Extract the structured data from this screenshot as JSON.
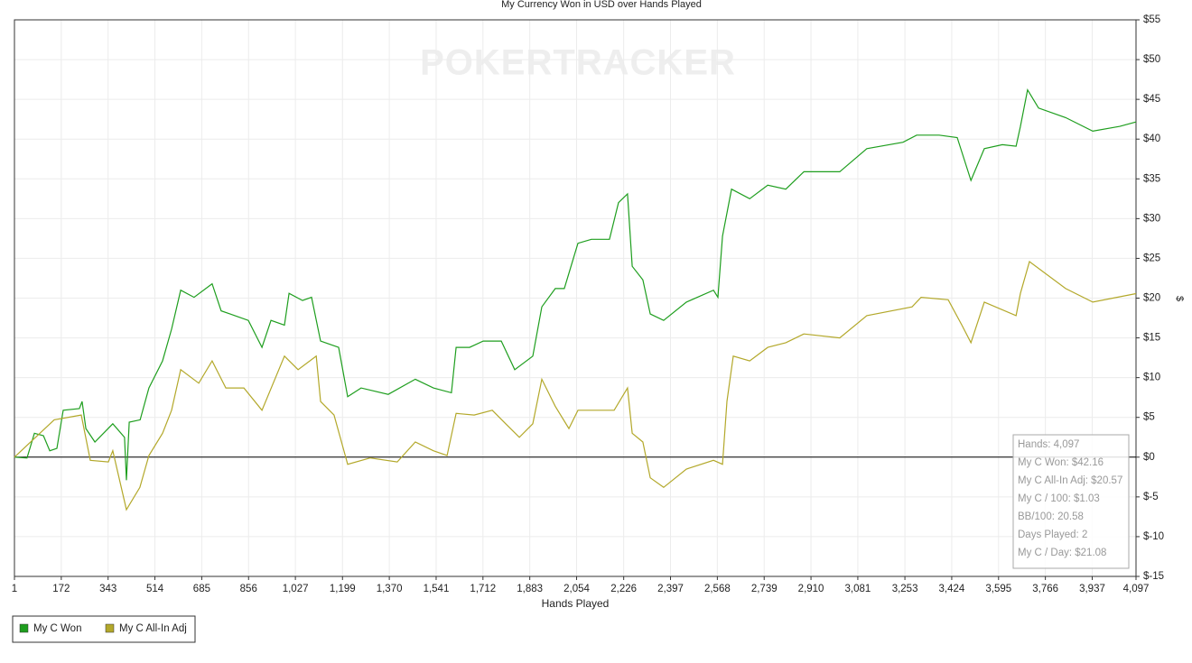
{
  "chart_data": {
    "type": "line",
    "title": "My Currency Won in USD over Hands Played",
    "watermark": "POKERTRACKER",
    "xlabel": "Hands Played",
    "ylabel": "$",
    "xlim": [
      1,
      4097
    ],
    "ylim": [
      -15,
      55
    ],
    "grid": true,
    "legend": "bottom-left",
    "xticks": [
      1,
      {
        "value": 172,
        "label": "172"
      },
      {
        "value": 343,
        "label": "343"
      },
      {
        "value": 514,
        "label": "514"
      },
      {
        "value": 685,
        "label": "685"
      },
      {
        "value": 856,
        "label": "856"
      },
      {
        "value": 1027,
        "label": "1,027"
      },
      {
        "value": 1199,
        "label": "1,199"
      },
      {
        "value": 1370,
        "label": "1,370"
      },
      {
        "value": 1541,
        "label": "1,541"
      },
      {
        "value": 1712,
        "label": "1,712"
      },
      {
        "value": 1883,
        "label": "1,883"
      },
      {
        "value": 2054,
        "label": "2,054"
      },
      {
        "value": 2226,
        "label": "2,226"
      },
      {
        "value": 2397,
        "label": "2,397"
      },
      {
        "value": 2568,
        "label": "2,568"
      },
      {
        "value": 2739,
        "label": "2,739"
      },
      {
        "value": 2910,
        "label": "2,910"
      },
      {
        "value": 3081,
        "label": "3,081"
      },
      {
        "value": 3253,
        "label": "3,253"
      },
      {
        "value": 3424,
        "label": "3,424"
      },
      {
        "value": 3595,
        "label": "3,595"
      },
      {
        "value": 3766,
        "label": "3,766"
      },
      {
        "value": 3937,
        "label": "3,937"
      },
      {
        "value": 4097,
        "label": "4,097"
      }
    ],
    "yticks": [
      {
        "value": -15,
        "label": "$-15"
      },
      {
        "value": -10,
        "label": "$-10"
      },
      {
        "value": -5,
        "label": "$-5"
      },
      {
        "value": 0,
        "label": "$0"
      },
      {
        "value": 5,
        "label": "$5"
      },
      {
        "value": 10,
        "label": "$10"
      },
      {
        "value": 15,
        "label": "$15"
      },
      {
        "value": 20,
        "label": "$20"
      },
      {
        "value": 25,
        "label": "$25"
      },
      {
        "value": 30,
        "label": "$30"
      },
      {
        "value": 35,
        "label": "$35"
      },
      {
        "value": 40,
        "label": "$40"
      },
      {
        "value": 45,
        "label": "$45"
      },
      {
        "value": 50,
        "label": "$50"
      },
      {
        "value": 55,
        "label": "$55"
      }
    ],
    "series": [
      {
        "name": "My C Won",
        "color": "#1e9e1e",
        "x": [
          1,
          47,
          74,
          107,
          130,
          156,
          179,
          238,
          248,
          262,
          295,
          360,
          403,
          410,
          420,
          460,
          492,
          542,
          575,
          608,
          657,
          723,
          756,
          806,
          855,
          905,
          938,
          987,
          1004,
          1053,
          1086,
          1119,
          1185,
          1218,
          1267,
          1366,
          1465,
          1531,
          1597,
          1614,
          1663,
          1713,
          1779,
          1828,
          1894,
          1927,
          1976,
          2009,
          2059,
          2108,
          2174,
          2207,
          2240,
          2257,
          2296,
          2323,
          2372,
          2455,
          2554,
          2570,
          2587,
          2620,
          2686,
          2752,
          2818,
          2884,
          3015,
          3114,
          3246,
          3296,
          3378,
          3444,
          3494,
          3543,
          3609,
          3659,
          3675,
          3701,
          3741,
          3840,
          3939,
          4038,
          4097
        ],
        "values": [
          0,
          -0.1,
          3.0,
          2.7,
          0.8,
          1.1,
          5.9,
          6.1,
          7.0,
          3.6,
          1.9,
          4.2,
          2.5,
          -2.9,
          4.4,
          4.7,
          8.7,
          12.1,
          16.1,
          21.0,
          20.1,
          21.8,
          18.4,
          17.8,
          17.2,
          13.8,
          17.2,
          16.6,
          20.6,
          19.7,
          20.1,
          14.6,
          13.8,
          7.6,
          8.7,
          7.9,
          9.8,
          8.7,
          8.1,
          13.8,
          13.8,
          14.6,
          14.6,
          11.0,
          12.7,
          18.9,
          21.2,
          21.2,
          26.9,
          27.4,
          27.4,
          32.0,
          33.1,
          24.0,
          22.3,
          18.0,
          17.2,
          19.5,
          21.0,
          20.1,
          27.8,
          33.7,
          32.5,
          34.2,
          33.7,
          35.9,
          35.9,
          38.8,
          39.6,
          40.5,
          40.5,
          40.2,
          34.8,
          38.8,
          39.3,
          39.1,
          41.6,
          46.2,
          43.9,
          42.7,
          41.0,
          41.6,
          42.16
        ]
      },
      {
        "name": "My C All-In Adj",
        "color": "#b3a82a",
        "x": [
          1,
          146,
          245,
          278,
          344,
          360,
          410,
          459,
          492,
          542,
          575,
          608,
          674,
          723,
          773,
          839,
          905,
          987,
          1037,
          1103,
          1119,
          1168,
          1218,
          1300,
          1399,
          1465,
          1531,
          1581,
          1614,
          1680,
          1746,
          1795,
          1845,
          1894,
          1927,
          1976,
          2026,
          2059,
          2191,
          2240,
          2257,
          2296,
          2323,
          2372,
          2455,
          2554,
          2587,
          2603,
          2626,
          2686,
          2752,
          2818,
          2884,
          3015,
          3114,
          3279,
          3312,
          3411,
          3461,
          3494,
          3543,
          3659,
          3675,
          3708,
          3840,
          3939,
          4097
        ],
        "values": [
          0,
          4.7,
          5.3,
          -0.4,
          -0.6,
          0.8,
          -6.6,
          -3.8,
          0.2,
          3.0,
          5.9,
          11.0,
          9.3,
          12.1,
          8.7,
          8.7,
          5.9,
          12.7,
          11.0,
          12.7,
          7.0,
          5.3,
          -0.9,
          -0.1,
          -0.6,
          1.9,
          0.8,
          0.2,
          5.5,
          5.3,
          5.9,
          4.2,
          2.5,
          4.2,
          9.8,
          6.4,
          3.6,
          5.9,
          5.9,
          8.7,
          3.0,
          1.9,
          -2.6,
          -3.8,
          -1.5,
          -0.4,
          -0.9,
          7.0,
          12.7,
          12.1,
          13.8,
          14.4,
          15.5,
          15.0,
          17.8,
          18.9,
          20.1,
          19.8,
          16.6,
          14.4,
          19.5,
          17.8,
          20.6,
          24.6,
          21.2,
          19.5,
          20.57
        ]
      }
    ],
    "tooltip": [
      "Hands: 4,097",
      "My C Won: $42.16",
      "My C All-In Adj: $20.57",
      "My C / 100: $1.03",
      "BB/100: 20.58",
      "Days Played: 2",
      "My C / Day: $21.08"
    ]
  }
}
